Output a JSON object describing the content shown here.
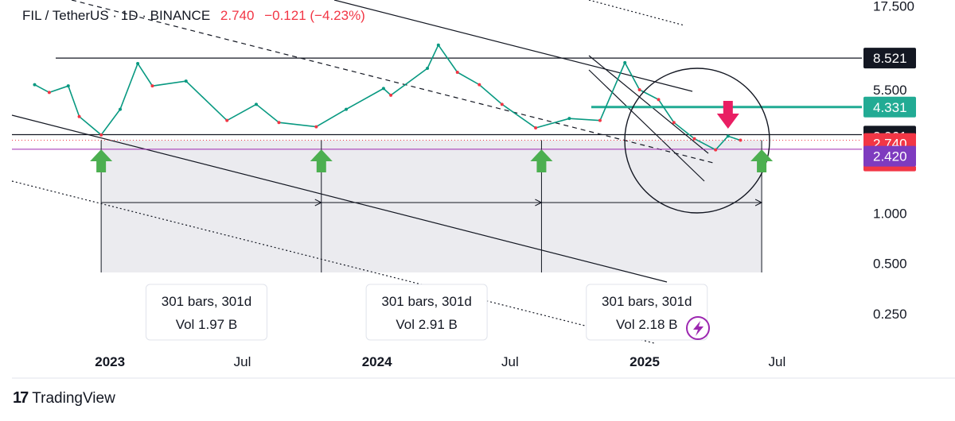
{
  "header": {
    "symbol": "FIL / TetherUS · 1D · BINANCE",
    "last": "2.740",
    "change": "−0.121 (−4.23%)"
  },
  "brand": {
    "name": "TradingView",
    "logo_text": "17"
  },
  "colors": {
    "up": "#089981",
    "down": "#f23645",
    "arrow_up": "#4caf50",
    "arrow_down": "#e91e63",
    "teal": "#22ab94",
    "purple": "#9c27b0",
    "shade": "#e8e8ec"
  },
  "chart_data": {
    "type": "line",
    "scale": "log",
    "ylim": [
      0.17,
      19
    ],
    "y_ticks": [
      "17.500",
      "8.500",
      "5.500",
      "1.000",
      "0.500",
      "0.250"
    ],
    "x_ticks": [
      "2023",
      "Jul",
      "2024",
      "Jul",
      "2025",
      "Jul"
    ],
    "x_tick_dates": [
      "2023-01-01",
      "2023-07-01",
      "2024-01-01",
      "2024-07-01",
      "2025-01-01",
      "2025-07-01"
    ],
    "series": [
      {
        "values": [
          {
            "date": "2022-09-20",
            "price": 5.9
          },
          {
            "date": "2022-10-10",
            "price": 5.3
          },
          {
            "date": "2022-11-05",
            "price": 5.8
          },
          {
            "date": "2022-11-20",
            "price": 3.8
          },
          {
            "date": "2022-12-20",
            "price": 2.95
          },
          {
            "date": "2023-01-15",
            "price": 4.2
          },
          {
            "date": "2023-02-08",
            "price": 7.9
          },
          {
            "date": "2023-02-28",
            "price": 5.8
          },
          {
            "date": "2023-04-15",
            "price": 6.2
          },
          {
            "date": "2023-06-10",
            "price": 3.6
          },
          {
            "date": "2023-07-20",
            "price": 4.5
          },
          {
            "date": "2023-08-20",
            "price": 3.5
          },
          {
            "date": "2023-10-10",
            "price": 3.3
          },
          {
            "date": "2023-11-20",
            "price": 4.2
          },
          {
            "date": "2024-01-10",
            "price": 5.6
          },
          {
            "date": "2024-01-20",
            "price": 5.1
          },
          {
            "date": "2024-03-10",
            "price": 7.4
          },
          {
            "date": "2024-03-25",
            "price": 10.2
          },
          {
            "date": "2024-04-20",
            "price": 7.0
          },
          {
            "date": "2024-05-20",
            "price": 5.9
          },
          {
            "date": "2024-06-20",
            "price": 4.5
          },
          {
            "date": "2024-08-05",
            "price": 3.25
          },
          {
            "date": "2024-09-20",
            "price": 3.7
          },
          {
            "date": "2024-11-01",
            "price": 3.6
          },
          {
            "date": "2024-12-05",
            "price": 8.0
          },
          {
            "date": "2024-12-25",
            "price": 5.5
          },
          {
            "date": "2025-01-20",
            "price": 4.8
          },
          {
            "date": "2025-02-10",
            "price": 3.5
          },
          {
            "date": "2025-03-10",
            "price": 2.8
          },
          {
            "date": "2025-04-08",
            "price": 2.4
          },
          {
            "date": "2025-04-25",
            "price": 2.9
          },
          {
            "date": "2025-05-12",
            "price": 2.74
          }
        ]
      }
    ],
    "levels": [
      {
        "value": 8.521,
        "label": "8.521"
      },
      {
        "value": 4.331,
        "label": "4.331"
      },
      {
        "value": 2.961,
        "label": "2.961"
      },
      {
        "value": 2.74,
        "label": "2.740",
        "countdown": "13:46:46"
      },
      {
        "value": 2.42,
        "label": "2.420"
      }
    ],
    "up_arrows": [
      "2022-12-20",
      "2023-10-17",
      "2024-08-13",
      "2025-06-10"
    ],
    "down_arrow": "2025-04-25",
    "range_boxes": [
      {
        "bars": "301 bars, 301d",
        "vol": "Vol 1.97 B"
      },
      {
        "bars": "301 bars, 301d",
        "vol": "Vol 2.91 B"
      },
      {
        "bars": "301 bars, 301d",
        "vol": "Vol 2.18 B"
      }
    ]
  }
}
